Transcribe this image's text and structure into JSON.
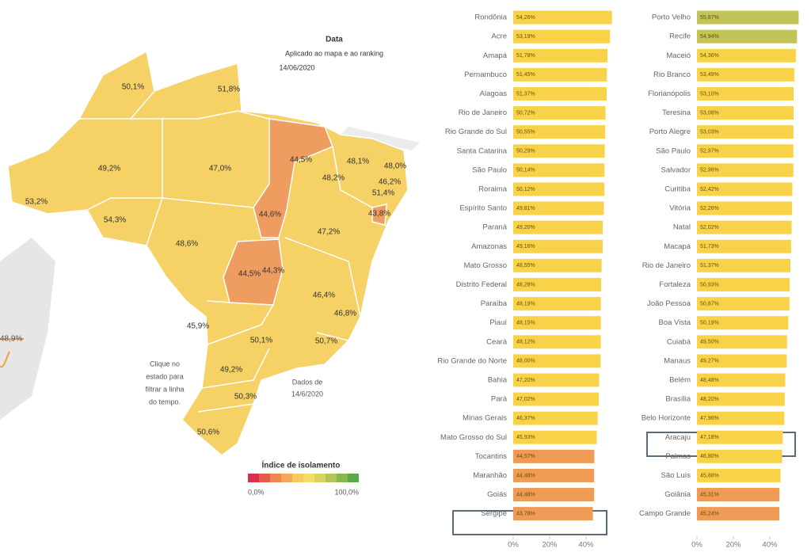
{
  "header": {
    "title": "Data",
    "subtitle": "Aplicado ao mapa e ao ranking",
    "date": "14/06/2020"
  },
  "map": {
    "state_labels": [
      "50,1%",
      "51,8%",
      "49,2%",
      "47,0%",
      "44,5%",
      "48,1%",
      "48,0%",
      "48,2%",
      "46,2%",
      "51,4%",
      "53,2%",
      "54,3%",
      "44,6%",
      "43,8%",
      "47,2%",
      "48,6%",
      "44,5%",
      "44,3%",
      "46,4%",
      "45,9%",
      "46,8%",
      "50,1%",
      "50,7%",
      "49,2%",
      "50,3%",
      "50,6%"
    ],
    "timeline_label": "48,9%",
    "hint": [
      "Clique no",
      "estado para",
      "filtrar a linha",
      "do tempo."
    ],
    "data_note": [
      "Dados de",
      "14/6/2020"
    ],
    "legend": {
      "title": "Índice de isolamento",
      "min": "0,0%",
      "max": "100,0%"
    }
  },
  "chart_data": [
    {
      "type": "bar",
      "orientation": "horizontal",
      "categories": [
        "Rondônia",
        "Acre",
        "Amapá",
        "Pernambuco",
        "Alagoas",
        "Rio de Janeiro",
        "Rio Grande do Sul",
        "Santa Catarina",
        "São Paulo",
        "Roraima",
        "Espírito Santo",
        "Paraná",
        "Amazonas",
        "Mato Grosso",
        "Distrito Federal",
        "Paraíba",
        "Piauí",
        "Ceará",
        "Rio Grande do Norte",
        "Bahia",
        "Pará",
        "Minas Gerais",
        "Mato Grosso do Sul",
        "Tocantins",
        "Maranhão",
        "Goiás",
        "Sergipe"
      ],
      "values": [
        54.26,
        53.19,
        51.78,
        51.45,
        51.37,
        50.72,
        50.55,
        50.29,
        50.14,
        50.12,
        49.81,
        49.2,
        49.16,
        48.55,
        48.28,
        48.19,
        48.15,
        48.12,
        48.0,
        47.2,
        47.02,
        46.37,
        45.93,
        44.57,
        44.48,
        44.48,
        43.78
      ],
      "value_labels": [
        "54,26%",
        "53,19%",
        "51,78%",
        "51,45%",
        "51,37%",
        "50,72%",
        "50,55%",
        "50,29%",
        "50,14%",
        "50,12%",
        "49,81%",
        "49,20%",
        "49,16%",
        "48,55%",
        "48,28%",
        "48,19%",
        "48,15%",
        "48,12%",
        "48,00%",
        "47,20%",
        "47,02%",
        "46,37%",
        "45,93%",
        "44,57%",
        "44,48%",
        "44,48%",
        "43,78%"
      ],
      "colors": [
        "#f8d34a",
        "#f8d34a",
        "#f8d34a",
        "#f8d34a",
        "#f8d34a",
        "#f8d34a",
        "#f8d34a",
        "#f8d34a",
        "#f8d34a",
        "#f8d34a",
        "#f8d34a",
        "#f8d34a",
        "#f8d34a",
        "#f8d34a",
        "#f8d34a",
        "#f8d34a",
        "#f8d34a",
        "#f8d34a",
        "#f8d34a",
        "#f8d34a",
        "#f8d34a",
        "#f8d34a",
        "#f8d34a",
        "#ef9a55",
        "#ef9a55",
        "#ef9a55",
        "#ef9a55"
      ],
      "xlim": [
        0,
        57
      ],
      "xticks": [
        {
          "value": 0,
          "label": "0%"
        },
        {
          "value": 20,
          "label": "20%"
        },
        {
          "value": 40,
          "label": "40%"
        }
      ]
    },
    {
      "type": "bar",
      "orientation": "horizontal",
      "categories": [
        "Porto Velho",
        "Recife",
        "Maceió",
        "Rio Branco",
        "Florianópolis",
        "Teresina",
        "Porto Alegre",
        "São Paulo",
        "Salvador",
        "Curitiba",
        "Vitória",
        "Natal",
        "Macapá",
        "Rio de Janeiro",
        "Fortaleza",
        "João Pessoa",
        "Boa Vista",
        "Cuiabá",
        "Manaus",
        "Belém",
        "Brasília",
        "Belo Horizonte",
        "Aracaju",
        "Palmas",
        "São Luís",
        "Goiânia",
        "Campo Grande"
      ],
      "values": [
        55.87,
        54.94,
        54.36,
        53.49,
        53.1,
        53.08,
        53.03,
        52.97,
        52.96,
        52.42,
        52.26,
        52.02,
        51.73,
        51.37,
        50.93,
        50.87,
        50.19,
        49.5,
        49.27,
        48.48,
        48.2,
        47.96,
        47.18,
        46.8,
        45.88,
        45.31,
        45.24
      ],
      "value_labels": [
        "55,87%",
        "54,94%",
        "54,36%",
        "53,49%",
        "53,10%",
        "53,08%",
        "53,03%",
        "52,97%",
        "52,96%",
        "52,42%",
        "52,26%",
        "52,02%",
        "51,73%",
        "51,37%",
        "50,93%",
        "50,87%",
        "50,19%",
        "49,50%",
        "49,27%",
        "48,48%",
        "48,20%",
        "47,96%",
        "47,18%",
        "46,80%",
        "45,88%",
        "45,31%",
        "45,24%"
      ],
      "colors": [
        "#c2c458",
        "#c2c458",
        "#f8d34a",
        "#f8d34a",
        "#f8d34a",
        "#f8d34a",
        "#f8d34a",
        "#f8d34a",
        "#f8d34a",
        "#f8d34a",
        "#f8d34a",
        "#f8d34a",
        "#f8d34a",
        "#f8d34a",
        "#f8d34a",
        "#f8d34a",
        "#f8d34a",
        "#f8d34a",
        "#f8d34a",
        "#f8d34a",
        "#f8d34a",
        "#f8d34a",
        "#f8d34a",
        "#f8d34a",
        "#f8d34a",
        "#ef9a55",
        "#ef9a55"
      ],
      "xlim": [
        0,
        57
      ],
      "xticks": [
        {
          "value": 0,
          "label": "0%"
        },
        {
          "value": 20,
          "label": "20%"
        },
        {
          "value": 40,
          "label": "40%"
        }
      ]
    }
  ]
}
